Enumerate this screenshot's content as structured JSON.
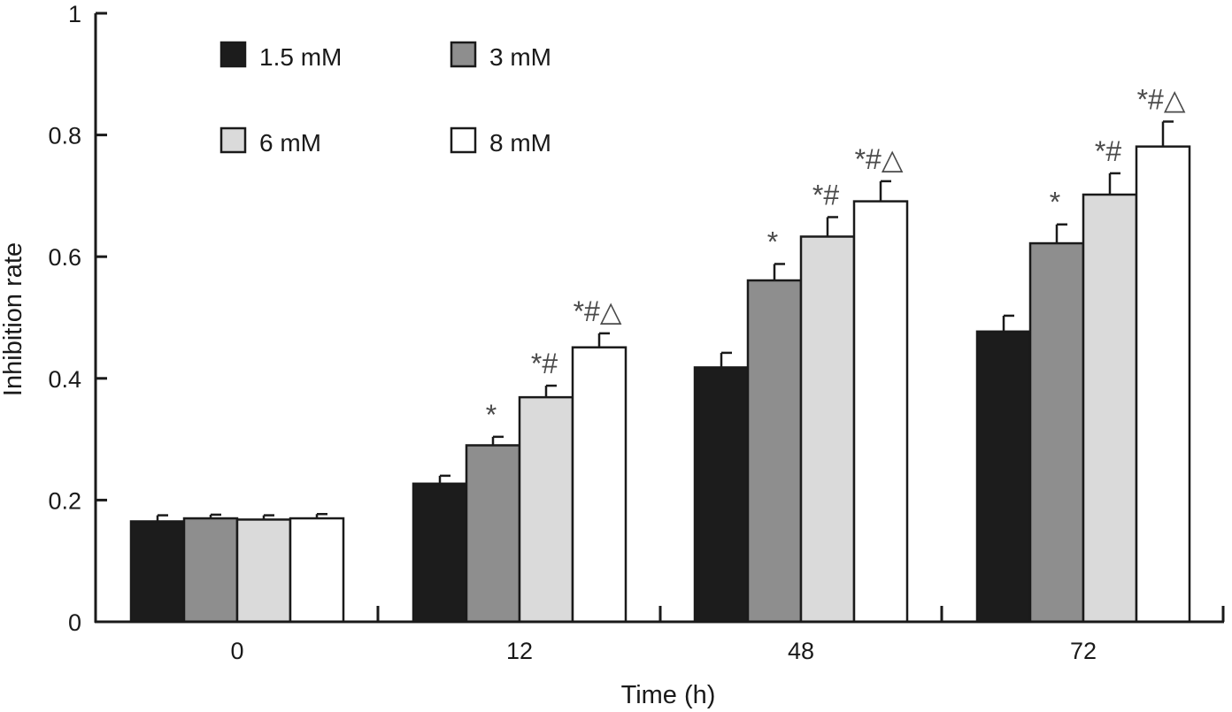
{
  "chart_data": {
    "type": "bar",
    "title": "",
    "xlabel": "Time (h)",
    "ylabel": "Inhibition rate",
    "ylim": [
      0,
      1
    ],
    "yticks": [
      0,
      0.2,
      0.4,
      0.6,
      0.8,
      1
    ],
    "ytick_labels": [
      "0",
      "0.2",
      "0.4",
      "0.6",
      "0.8",
      "1"
    ],
    "categories": [
      "0",
      "12",
      "48",
      "72"
    ],
    "grid": false,
    "legend_position": "top-left",
    "series": [
      {
        "name": "1.5 mM",
        "color": "#1c1c1c",
        "values": [
          0.165,
          0.227,
          0.418,
          0.477
        ],
        "errors": [
          0.01,
          0.013,
          0.024,
          0.026
        ],
        "annotations": [
          "",
          "",
          "",
          ""
        ]
      },
      {
        "name": "3 mM",
        "color": "#8e8e8e",
        "values": [
          0.17,
          0.29,
          0.561,
          0.622
        ],
        "errors": [
          0.006,
          0.014,
          0.027,
          0.031
        ],
        "annotations": [
          "",
          "*",
          "*",
          "*"
        ]
      },
      {
        "name": "6 mM",
        "color": "#dadada",
        "values": [
          0.168,
          0.369,
          0.633,
          0.702
        ],
        "errors": [
          0.007,
          0.019,
          0.032,
          0.035
        ],
        "annotations": [
          "",
          "*#",
          "*#",
          "*#"
        ]
      },
      {
        "name": "8 mM",
        "color": "#ffffff",
        "values": [
          0.17,
          0.451,
          0.691,
          0.781
        ],
        "errors": [
          0.007,
          0.023,
          0.033,
          0.041
        ],
        "annotations": [
          "",
          "*#△",
          "*#△",
          "*#△"
        ]
      }
    ]
  }
}
